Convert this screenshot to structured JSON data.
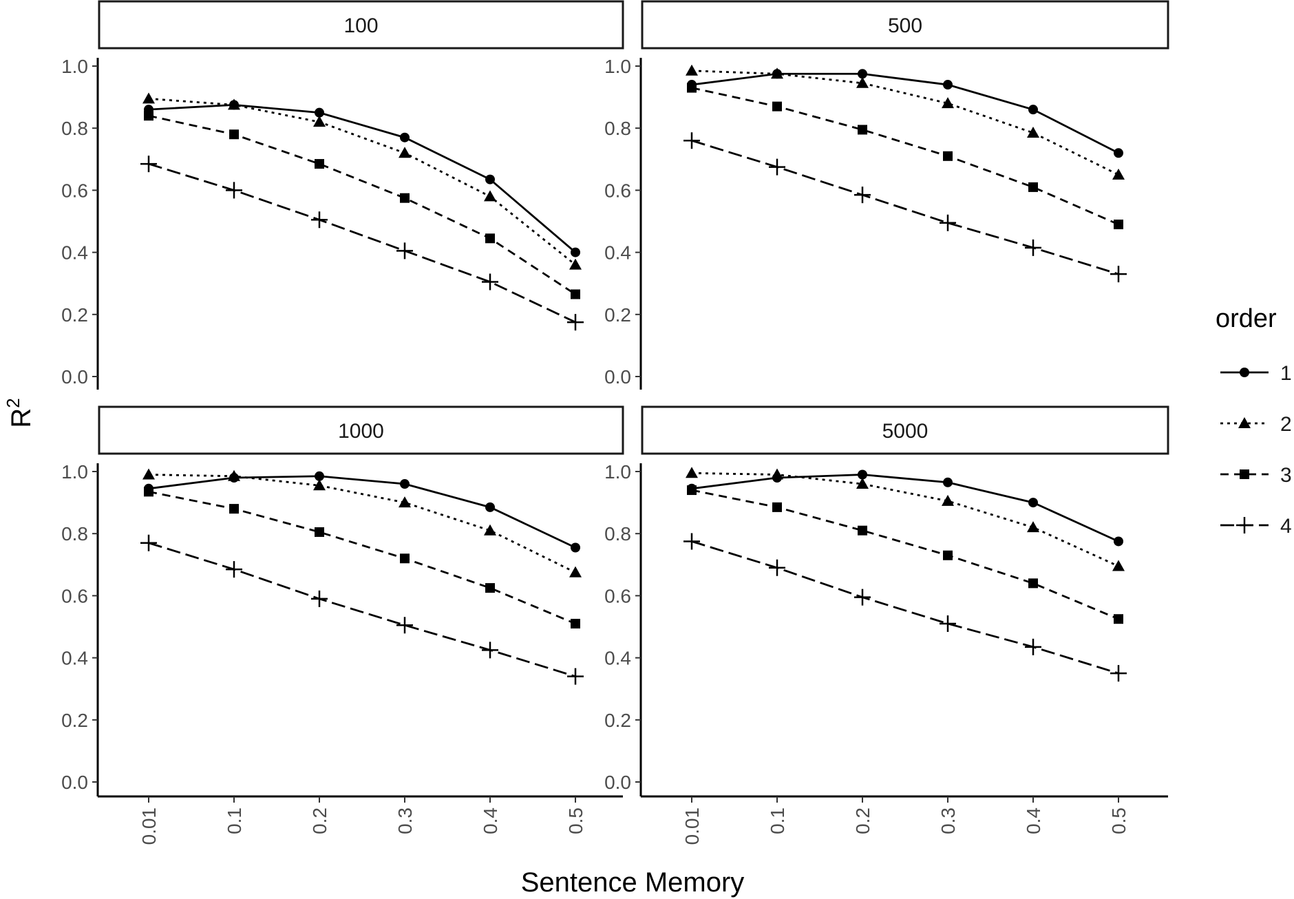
{
  "chart_data": {
    "type": "line",
    "xlabel": "Sentence Memory",
    "ylabel": "R",
    "ylabel_superscript": "2",
    "x_ticks": [
      "0.01",
      "0.1",
      "0.2",
      "0.3",
      "0.4",
      "0.5"
    ],
    "y_ticks": [
      "0.0",
      "0.2",
      "0.4",
      "0.6",
      "0.8",
      "1.0"
    ],
    "ylim": [
      0,
      1.0
    ],
    "grid": false,
    "legend": {
      "title": "order",
      "position": "right",
      "entries": [
        {
          "label": "1",
          "shape": "circle",
          "dash": "solid"
        },
        {
          "label": "2",
          "shape": "triangle",
          "dash": "dotted"
        },
        {
          "label": "3",
          "shape": "square",
          "dash": "dashed"
        },
        {
          "label": "4",
          "shape": "plus",
          "dash": "longdash"
        }
      ]
    },
    "panels": [
      {
        "label": "100",
        "series": [
          {
            "name": "1",
            "values": [
              0.86,
              0.875,
              0.85,
              0.77,
              0.635,
              0.4
            ]
          },
          {
            "name": "2",
            "values": [
              0.895,
              0.875,
              0.82,
              0.72,
              0.58,
              0.36
            ]
          },
          {
            "name": "3",
            "values": [
              0.84,
              0.78,
              0.685,
              0.575,
              0.445,
              0.265
            ]
          },
          {
            "name": "4",
            "values": [
              0.685,
              0.6,
              0.505,
              0.405,
              0.305,
              0.175
            ]
          }
        ]
      },
      {
        "label": "500",
        "series": [
          {
            "name": "1",
            "values": [
              0.94,
              0.975,
              0.975,
              0.94,
              0.86,
              0.72
            ]
          },
          {
            "name": "2",
            "values": [
              0.985,
              0.975,
              0.945,
              0.88,
              0.785,
              0.65
            ]
          },
          {
            "name": "3",
            "values": [
              0.93,
              0.87,
              0.795,
              0.71,
              0.61,
              0.49
            ]
          },
          {
            "name": "4",
            "values": [
              0.76,
              0.675,
              0.585,
              0.495,
              0.415,
              0.33
            ]
          }
        ]
      },
      {
        "label": "1000",
        "series": [
          {
            "name": "1",
            "values": [
              0.945,
              0.98,
              0.985,
              0.96,
              0.885,
              0.755
            ]
          },
          {
            "name": "2",
            "values": [
              0.99,
              0.985,
              0.955,
              0.9,
              0.81,
              0.675
            ]
          },
          {
            "name": "3",
            "values": [
              0.935,
              0.88,
              0.805,
              0.72,
              0.625,
              0.51
            ]
          },
          {
            "name": "4",
            "values": [
              0.77,
              0.685,
              0.59,
              0.505,
              0.425,
              0.34
            ]
          }
        ]
      },
      {
        "label": "5000",
        "series": [
          {
            "name": "1",
            "values": [
              0.945,
              0.98,
              0.99,
              0.965,
              0.9,
              0.775
            ]
          },
          {
            "name": "2",
            "values": [
              0.995,
              0.99,
              0.96,
              0.905,
              0.82,
              0.695
            ]
          },
          {
            "name": "3",
            "values": [
              0.94,
              0.885,
              0.81,
              0.73,
              0.64,
              0.525
            ]
          },
          {
            "name": "4",
            "values": [
              0.775,
              0.69,
              0.595,
              0.51,
              0.435,
              0.35
            ]
          }
        ]
      }
    ]
  }
}
